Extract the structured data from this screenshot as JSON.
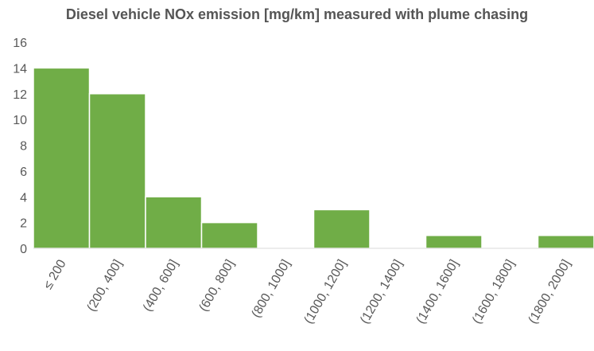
{
  "chart_data": {
    "type": "bar",
    "title": "Diesel vehicle NOx emission [mg/km] measured with plume chasing",
    "categories": [
      "≤ 200",
      "(200, 400]",
      "(400, 600]",
      "(600, 800]",
      "(800, 1000]",
      "(1000, 1200]",
      "(1200, 1400]",
      "(1400, 1600]",
      "(1600, 1800]",
      "(1800, 2000]"
    ],
    "values": [
      14,
      12,
      4,
      2,
      0,
      3,
      0,
      1,
      0,
      1
    ],
    "ylim": [
      0,
      16
    ],
    "yticks": [
      0,
      2,
      4,
      6,
      8,
      10,
      12,
      14,
      16
    ],
    "grid": false,
    "bar_color": "#70ad47",
    "bar_edge_color": "#ffffff"
  }
}
